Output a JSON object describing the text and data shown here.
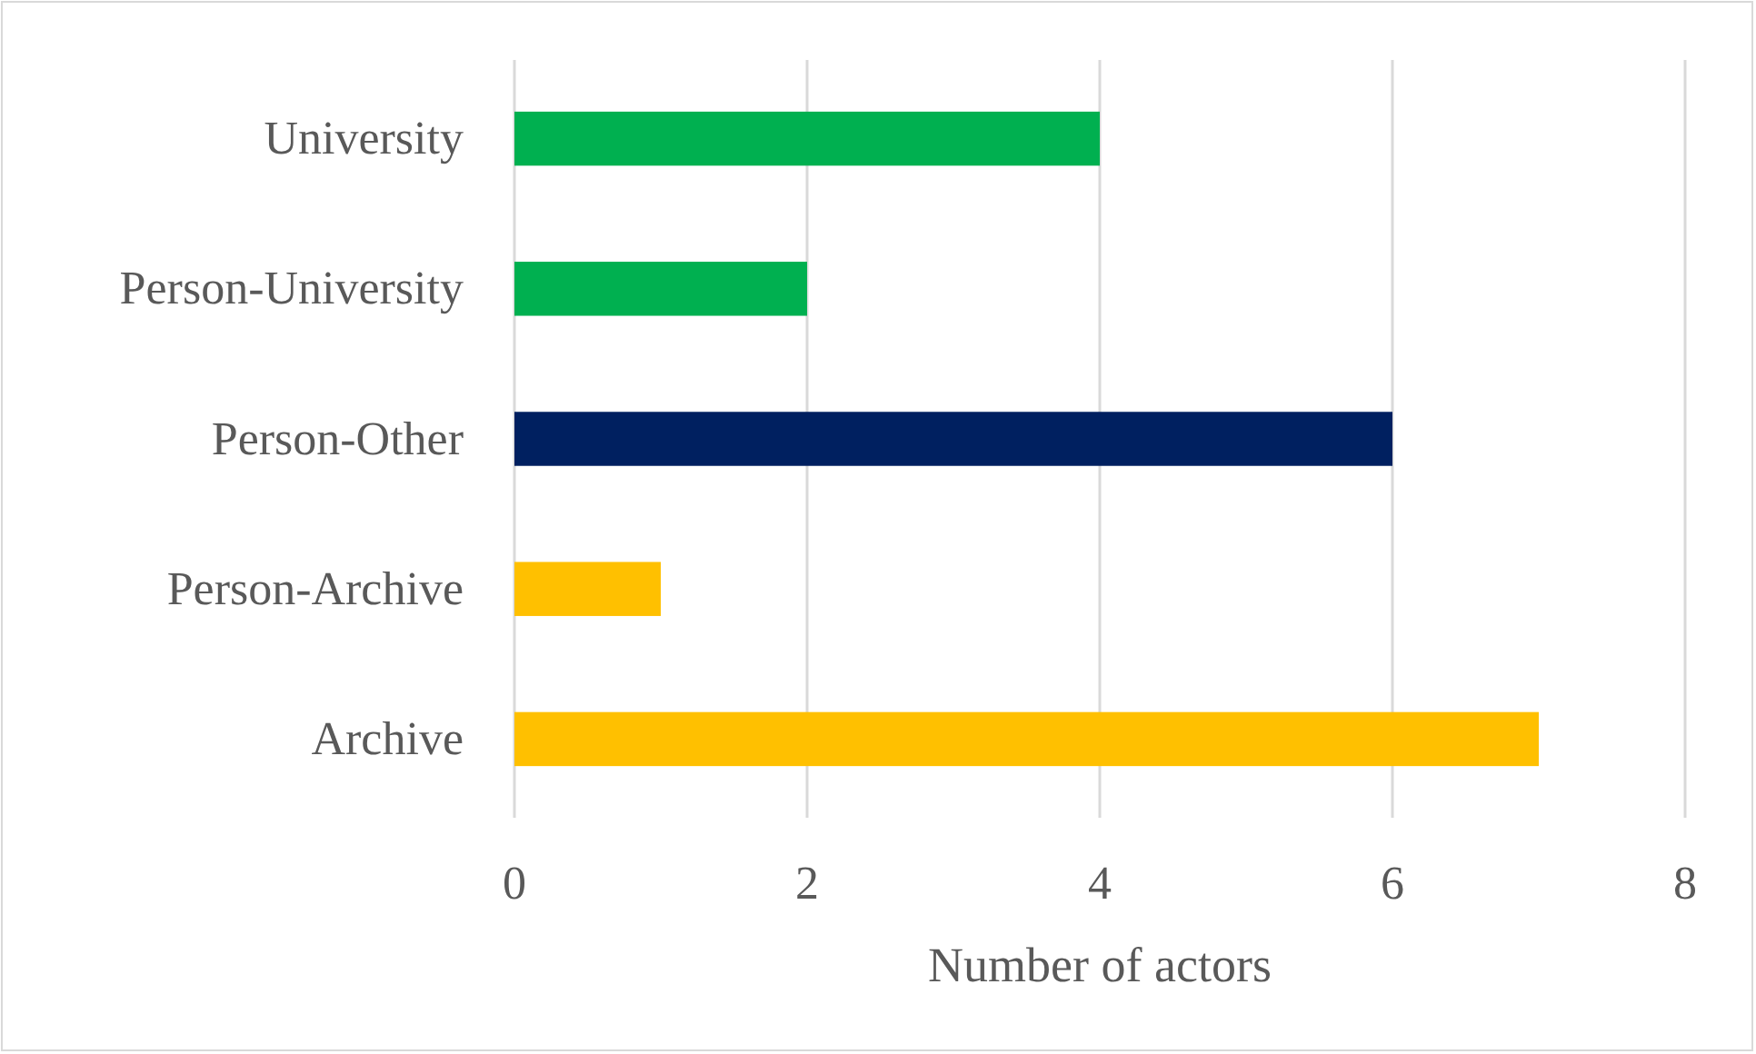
{
  "chart_data": {
    "type": "bar",
    "orientation": "horizontal",
    "xlabel": "Number of actors",
    "categories": [
      "University",
      "Person-University",
      "Person-Other",
      "Person-Archive",
      "Archive"
    ],
    "values": [
      4,
      2,
      6,
      1,
      7
    ],
    "colors": [
      "#00b050",
      "#00b050",
      "#002060",
      "#ffc000",
      "#ffc000"
    ],
    "xlim": [
      0,
      8
    ],
    "xticks": [
      0,
      2,
      4,
      6,
      8
    ],
    "grid": "x"
  }
}
